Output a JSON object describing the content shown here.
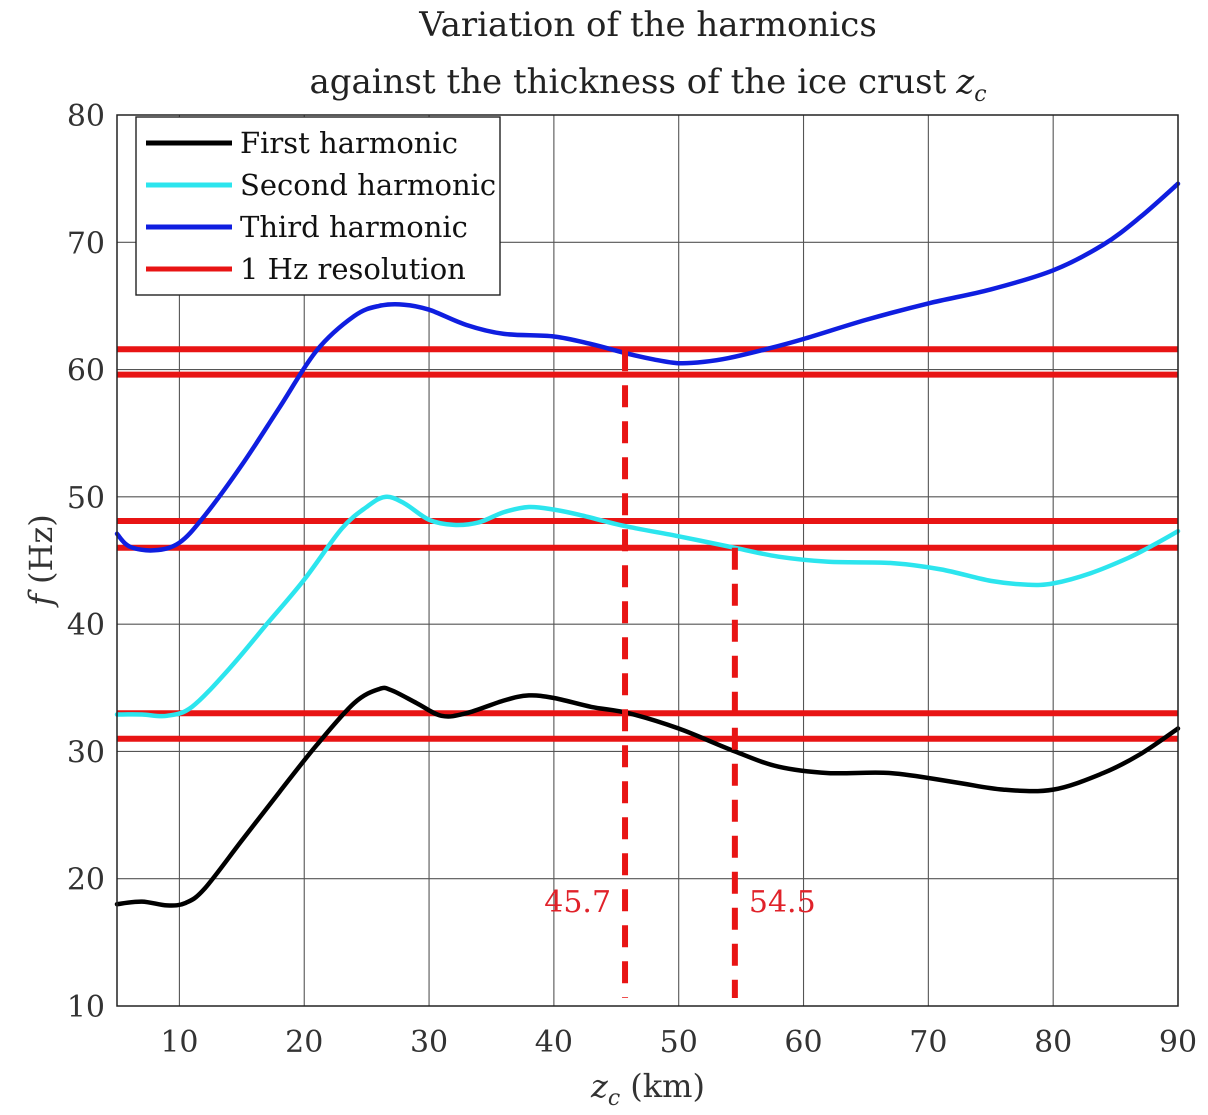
{
  "chart_data": {
    "type": "line",
    "title": [
      "Variation of the harmonics",
      "against the thickness of the ice crust"
    ],
    "title_symbol": "z",
    "title_symbol_sub": "c",
    "xlabel_symbol": "z",
    "xlabel_sub": "c",
    "xlabel_unit": "(km)",
    "ylabel_symbol": "f",
    "ylabel_unit": "(Hz)",
    "xlim": [
      5,
      90
    ],
    "ylim": [
      10,
      80
    ],
    "xticks": [
      "10",
      "20",
      "30",
      "40",
      "50",
      "60",
      "70",
      "80",
      "90"
    ],
    "yticks": [
      "10",
      "20",
      "30",
      "40",
      "50",
      "60",
      "70",
      "80"
    ],
    "grid": true,
    "legend_position": "top-left",
    "series": [
      {
        "name": "First harmonic",
        "color": "#000000",
        "x": [
          5,
          7,
          9,
          10.5,
          12,
          15,
          18,
          21,
          24,
          26,
          27,
          29,
          31,
          33,
          36,
          38,
          40,
          43,
          46,
          50,
          54.5,
          58,
          62,
          67,
          72,
          76,
          80,
          84,
          87,
          90
        ],
        "y": [
          18,
          18.2,
          17.9,
          18.1,
          19.2,
          23,
          26.8,
          30.5,
          33.8,
          34.9,
          34.8,
          33.8,
          32.8,
          33.0,
          34.0,
          34.4,
          34.2,
          33.5,
          33.0,
          31.8,
          30.0,
          28.8,
          28.3,
          28.3,
          27.6,
          27.0,
          27.0,
          28.3,
          29.8,
          31.8
        ]
      },
      {
        "name": "Second harmonic",
        "color": "#2ce5ee",
        "x": [
          5,
          7,
          9,
          11,
          14,
          17,
          20,
          23,
          25,
          26.5,
          28,
          30,
          32,
          34,
          36,
          38,
          40,
          42,
          45.7,
          50,
          54.5,
          58,
          62,
          67,
          71,
          75,
          78,
          80,
          83,
          86,
          88,
          90
        ],
        "y": [
          32.9,
          32.9,
          32.8,
          33.5,
          36.5,
          40,
          43.5,
          47.5,
          49.2,
          50.0,
          49.5,
          48.2,
          47.8,
          48.0,
          48.8,
          49.2,
          49.0,
          48.6,
          47.7,
          46.9,
          46.0,
          45.3,
          44.9,
          44.8,
          44.3,
          43.4,
          43.1,
          43.2,
          44.0,
          45.2,
          46.2,
          47.3
        ]
      },
      {
        "name": "Third harmonic",
        "color": "#0f1ee0",
        "x": [
          5,
          6,
          8,
          10,
          12,
          15,
          18,
          21,
          24,
          26,
          28,
          30,
          33,
          36,
          40,
          43,
          45.7,
          48,
          50,
          52,
          54,
          57,
          60,
          65,
          70,
          75,
          80,
          84,
          87,
          90
        ],
        "y": [
          47.1,
          46.1,
          45.8,
          46.4,
          48.5,
          52.5,
          57,
          61.5,
          64.2,
          65.0,
          65.1,
          64.7,
          63.5,
          62.8,
          62.6,
          62.0,
          61.3,
          60.8,
          60.5,
          60.6,
          60.9,
          61.6,
          62.4,
          63.9,
          65.2,
          66.3,
          67.8,
          69.8,
          72.0,
          74.6
        ]
      }
    ],
    "resolution_lines": {
      "name": "1 Hz resolution",
      "color": "#e81414",
      "y": [
        61.6,
        59.6,
        48.1,
        46.0,
        33.0,
        31.0
      ]
    },
    "markers": [
      {
        "x": 45.7,
        "y_top": 61.6,
        "label": "45.7",
        "label_side": "left"
      },
      {
        "x": 54.5,
        "y_top": 46.0,
        "label": "54.5",
        "label_side": "right"
      }
    ],
    "legend": [
      "First harmonic",
      "Second harmonic",
      "Third harmonic",
      "1 Hz resolution"
    ]
  }
}
